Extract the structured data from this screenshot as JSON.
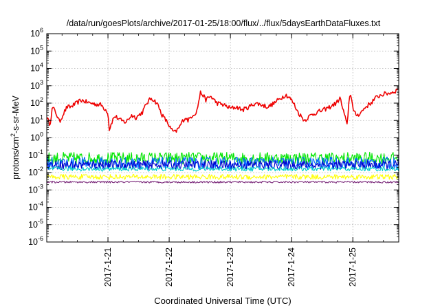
{
  "chart_data": {
    "type": "line",
    "title": "/data/run/goesPlots/archive/2017-01-25/18:00/flux/../flux/5daysEarthDataFluxes.txt",
    "xlabel": "Coordinated Universal Time (UTC)",
    "ylabel": {
      "prefix": "protons/cm",
      "sup": "2",
      "suffix": "-s-sr-MeV"
    },
    "yscale": "log",
    "ylim": [
      1e-06,
      1000000.0
    ],
    "xlim": [
      "2017-01-20T00:00",
      "2017-01-25T18:00"
    ],
    "grid": true,
    "legend": "none",
    "y_ticks": [
      {
        "base": "10",
        "exp": "-6",
        "value": 1e-06
      },
      {
        "base": "10",
        "exp": "-5",
        "value": 1e-05
      },
      {
        "base": "10",
        "exp": "-4",
        "value": 0.0001
      },
      {
        "base": "10",
        "exp": "-3",
        "value": 0.001
      },
      {
        "base": "10",
        "exp": "-2",
        "value": 0.01
      },
      {
        "base": "10",
        "exp": "-1",
        "value": 0.1
      },
      {
        "base": "10",
        "exp": "0",
        "value": 1
      },
      {
        "base": "10",
        "exp": "1",
        "value": 10
      },
      {
        "base": "10",
        "exp": "2",
        "value": 100
      },
      {
        "base": "10",
        "exp": "3",
        "value": 1000
      },
      {
        "base": "10",
        "exp": "4",
        "value": 10000
      },
      {
        "base": "10",
        "exp": "5",
        "value": 100000
      },
      {
        "base": "10",
        "exp": "6",
        "value": 1000000
      }
    ],
    "x_ticks": [
      {
        "label": "2017-1-21",
        "value": "2017-01-21T00:00"
      },
      {
        "label": "2017-1-22",
        "value": "2017-01-22T00:00"
      },
      {
        "label": "2017-1-23",
        "value": "2017-01-23T00:00"
      },
      {
        "label": "2017-1-24",
        "value": "2017-01-24T00:00"
      },
      {
        "label": "2017-1-25",
        "value": "2017-01-25T00:00"
      }
    ],
    "series": [
      {
        "color": "#ee0000",
        "noise_factor": 1.35,
        "x": [
          "2017-01-20T00:00",
          "2017-01-20T01:15",
          "2017-01-20T02:15",
          "2017-01-20T03:45",
          "2017-01-20T05:00",
          "2017-01-20T06:30",
          "2017-01-20T08:00",
          "2017-01-20T09:15",
          "2017-01-20T11:15",
          "2017-01-20T13:30",
          "2017-01-20T16:00",
          "2017-01-20T18:45",
          "2017-01-20T21:15",
          "2017-01-21T00:00",
          "2017-01-21T00:30",
          "2017-01-21T01:45",
          "2017-01-21T02:45",
          "2017-01-21T05:00",
          "2017-01-21T07:00",
          "2017-01-21T09:15",
          "2017-01-21T11:00",
          "2017-01-21T13:30",
          "2017-01-21T15:15",
          "2017-01-21T17:00",
          "2017-01-21T19:15",
          "2017-01-21T21:15",
          "2017-01-21T23:15",
          "2017-01-22T00:45",
          "2017-01-22T02:15",
          "2017-01-22T04:00",
          "2017-01-22T05:00",
          "2017-01-22T06:15",
          "2017-01-22T07:30",
          "2017-01-22T09:00",
          "2017-01-22T10:45",
          "2017-01-22T12:15",
          "2017-01-22T13:15",
          "2017-01-22T14:15",
          "2017-01-22T16:15",
          "2017-01-22T18:45",
          "2017-01-22T21:15",
          "2017-01-23T00:00",
          "2017-01-23T02:30",
          "2017-01-23T04:45",
          "2017-01-23T07:15",
          "2017-01-23T09:45",
          "2017-01-23T12:15",
          "2017-01-23T14:45",
          "2017-01-23T17:15",
          "2017-01-23T19:45",
          "2017-01-23T21:45",
          "2017-01-23T23:15",
          "2017-01-24T00:45",
          "2017-01-24T02:30",
          "2017-01-24T05:00",
          "2017-01-24T07:30",
          "2017-01-24T10:00",
          "2017-01-24T12:30",
          "2017-01-24T15:00",
          "2017-01-24T17:30",
          "2017-01-24T19:00",
          "2017-01-24T20:00",
          "2017-01-24T20:45",
          "2017-01-24T21:45",
          "2017-01-24T22:30",
          "2017-01-24T23:15",
          "2017-01-25T00:15",
          "2017-01-25T01:45",
          "2017-01-25T03:15",
          "2017-01-25T05:00",
          "2017-01-25T07:00",
          "2017-01-25T09:00",
          "2017-01-25T11:00",
          "2017-01-25T13:00",
          "2017-01-25T15:00",
          "2017-01-25T16:45",
          "2017-01-25T18:00"
        ],
        "y": [
          15,
          6,
          60,
          25,
          8,
          25,
          60,
          60,
          90,
          150,
          110,
          90,
          80,
          30,
          3,
          10,
          18,
          10,
          8,
          20,
          15,
          30,
          100,
          200,
          100,
          20,
          8,
          3,
          2,
          4,
          8,
          15,
          10,
          20,
          30,
          400,
          300,
          150,
          250,
          100,
          80,
          50,
          60,
          40,
          60,
          100,
          80,
          60,
          100,
          200,
          300,
          200,
          100,
          30,
          10,
          20,
          30,
          40,
          60,
          100,
          200,
          50,
          20,
          5,
          150,
          400,
          30,
          20,
          30,
          60,
          100,
          200,
          300,
          350,
          400,
          500,
          700
        ]
      },
      {
        "color": "#00e600",
        "y_min": 0.03,
        "y_max": 0.15,
        "noise_factor": 0,
        "x": [
          "2017-01-20T00:00",
          "2017-01-25T18:00"
        ],
        "y": [
          0.07,
          0.07
        ]
      },
      {
        "color": "#0066ff",
        "y_min": 0.015,
        "y_max": 0.08,
        "noise_factor": 0,
        "x": [
          "2017-01-20T00:00",
          "2017-01-25T18:00"
        ],
        "y": [
          0.035,
          0.035
        ]
      },
      {
        "color": "#0000cc",
        "y_min": 0.015,
        "y_max": 0.05,
        "noise_factor": 0,
        "x": [
          "2017-01-20T00:00",
          "2017-01-25T18:00"
        ],
        "y": [
          0.025,
          0.025
        ]
      },
      {
        "color": "#00cccc",
        "y_min": 0.012,
        "y_max": 0.022,
        "noise_factor": 0,
        "x": [
          "2017-01-20T00:00",
          "2017-01-25T18:00"
        ],
        "y": [
          0.016,
          0.016
        ]
      },
      {
        "color": "#ffff00",
        "y_min": 0.004,
        "y_max": 0.008,
        "noise_factor": 0,
        "x": [
          "2017-01-20T00:00",
          "2017-01-25T18:00"
        ],
        "y": [
          0.006,
          0.006
        ]
      },
      {
        "color": "#7b2a7b",
        "y_min": 0.0025,
        "y_max": 0.0032,
        "noise_factor": 0,
        "x": [
          "2017-01-20T00:00",
          "2017-01-25T18:00"
        ],
        "y": [
          0.0028,
          0.0028
        ]
      }
    ]
  }
}
